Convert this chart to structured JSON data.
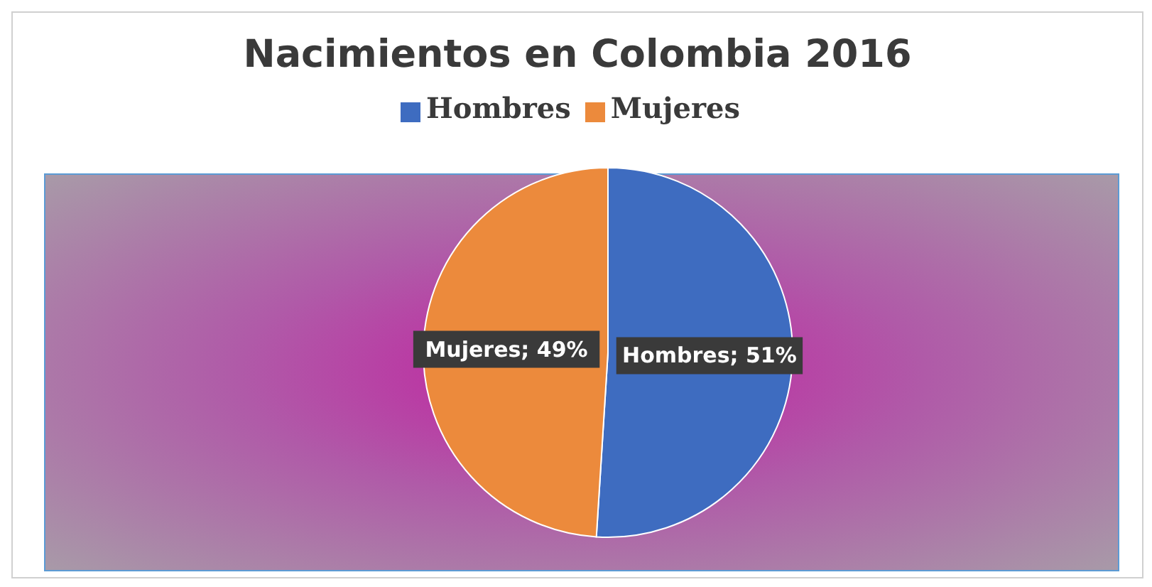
{
  "chart_data": {
    "type": "pie",
    "title": "Nacimientos en Colombia 2016",
    "categories": [
      "Hombres",
      "Mujeres"
    ],
    "values": [
      51,
      49
    ],
    "colors": [
      "#3e6cc0",
      "#ec8a3c"
    ],
    "value_labels": [
      "Hombres; 51%",
      "Mujeres; 49%"
    ],
    "legend": "top"
  }
}
